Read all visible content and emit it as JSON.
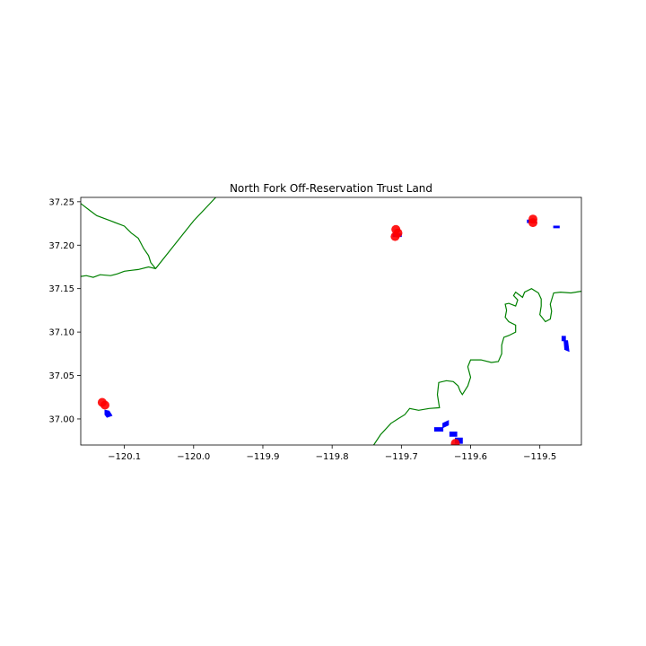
{
  "chart_data": {
    "type": "map",
    "title": "North Fork Off-Reservation Trust Land",
    "xlabel": "",
    "ylabel": "",
    "xlim": [
      -120.163,
      -119.44
    ],
    "ylim": [
      36.97,
      37.255
    ],
    "xticks": [
      -120.1,
      -120.0,
      -119.9,
      -119.8,
      -119.7,
      -119.6,
      -119.5
    ],
    "yticks": [
      37.0,
      37.05,
      37.1,
      37.15,
      37.2,
      37.25
    ],
    "xtick_labels": [
      "−120.1",
      "−120.0",
      "−119.9",
      "−119.8",
      "−119.7",
      "−119.6",
      "−119.5"
    ],
    "ytick_labels": [
      "37.00",
      "37.05",
      "37.10",
      "37.15",
      "37.20",
      "37.25"
    ],
    "grid": false,
    "colors": {
      "boundary": "#008000",
      "parcels": "#0000ff",
      "points": "#ff0000"
    },
    "boundary_lines": [
      [
        [
          -120.163,
          37.248
        ],
        [
          -120.15,
          37.24
        ],
        [
          -120.14,
          37.234
        ],
        [
          -120.12,
          37.228
        ],
        [
          -120.1,
          37.222
        ],
        [
          -120.09,
          37.214
        ],
        [
          -120.08,
          37.208
        ],
        [
          -120.072,
          37.196
        ],
        [
          -120.065,
          37.188
        ],
        [
          -120.062,
          37.18
        ],
        [
          -120.055,
          37.173
        ]
      ],
      [
        [
          -120.163,
          37.164
        ],
        [
          -120.155,
          37.165
        ],
        [
          -120.145,
          37.163
        ],
        [
          -120.135,
          37.166
        ],
        [
          -120.12,
          37.165
        ],
        [
          -120.11,
          37.167
        ],
        [
          -120.1,
          37.17
        ],
        [
          -120.09,
          37.171
        ],
        [
          -120.08,
          37.172
        ],
        [
          -120.065,
          37.175
        ],
        [
          -120.055,
          37.173
        ],
        [
          -120.03,
          37.198
        ],
        [
          -120.0,
          37.228
        ],
        [
          -119.968,
          37.255
        ]
      ],
      [
        [
          -119.74,
          36.97
        ],
        [
          -119.73,
          36.982
        ],
        [
          -119.715,
          36.995
        ],
        [
          -119.705,
          37.0
        ],
        [
          -119.695,
          37.005
        ],
        [
          -119.688,
          37.012
        ],
        [
          -119.675,
          37.01
        ],
        [
          -119.66,
          37.012
        ],
        [
          -119.645,
          37.013
        ],
        [
          -119.648,
          37.028
        ],
        [
          -119.646,
          37.042
        ],
        [
          -119.635,
          37.044
        ],
        [
          -119.625,
          37.043
        ],
        [
          -119.618,
          37.038
        ],
        [
          -119.615,
          37.032
        ],
        [
          -119.612,
          37.028
        ],
        [
          -119.604,
          37.038
        ],
        [
          -119.6,
          37.048
        ],
        [
          -119.604,
          37.06
        ],
        [
          -119.6,
          37.068
        ],
        [
          -119.585,
          37.068
        ],
        [
          -119.57,
          37.065
        ],
        [
          -119.56,
          37.066
        ],
        [
          -119.555,
          37.075
        ],
        [
          -119.555,
          37.085
        ],
        [
          -119.552,
          37.094
        ],
        [
          -119.545,
          37.096
        ],
        [
          -119.535,
          37.1
        ],
        [
          -119.535,
          37.108
        ],
        [
          -119.545,
          37.112
        ],
        [
          -119.55,
          37.117
        ],
        [
          -119.548,
          37.125
        ],
        [
          -119.55,
          37.132
        ],
        [
          -119.545,
          37.133
        ],
        [
          -119.535,
          37.13
        ],
        [
          -119.532,
          37.137
        ],
        [
          -119.538,
          37.142
        ],
        [
          -119.535,
          37.146
        ],
        [
          -119.525,
          37.14
        ],
        [
          -119.522,
          37.146
        ],
        [
          -119.512,
          37.15
        ],
        [
          -119.502,
          37.145
        ],
        [
          -119.498,
          37.138
        ],
        [
          -119.498,
          37.13
        ],
        [
          -119.5,
          37.12
        ],
        [
          -119.492,
          37.112
        ],
        [
          -119.485,
          37.115
        ],
        [
          -119.483,
          37.124
        ],
        [
          -119.485,
          37.132
        ],
        [
          -119.48,
          37.145
        ],
        [
          -119.47,
          37.146
        ],
        [
          -119.455,
          37.145
        ],
        [
          -119.44,
          37.147
        ]
      ]
    ],
    "parcel_polygons": [
      [
        [
          -120.128,
          37.01
        ],
        [
          -120.122,
          37.009
        ],
        [
          -120.118,
          37.004
        ],
        [
          -120.125,
          37.002
        ],
        [
          -120.128,
          37.005
        ]
      ],
      [
        [
          -119.712,
          37.213
        ],
        [
          -119.7,
          37.213
        ],
        [
          -119.7,
          37.21
        ],
        [
          -119.712,
          37.21
        ]
      ],
      [
        [
          -119.518,
          37.229
        ],
        [
          -119.505,
          37.229
        ],
        [
          -119.505,
          37.226
        ],
        [
          -119.518,
          37.226
        ]
      ],
      [
        [
          -119.48,
          37.222
        ],
        [
          -119.472,
          37.222
        ],
        [
          -119.472,
          37.22
        ],
        [
          -119.48,
          37.22
        ]
      ],
      [
        [
          -119.468,
          37.095
        ],
        [
          -119.463,
          37.095
        ],
        [
          -119.463,
          37.09
        ],
        [
          -119.468,
          37.09
        ]
      ],
      [
        [
          -119.465,
          37.09
        ],
        [
          -119.46,
          37.09
        ],
        [
          -119.458,
          37.078
        ],
        [
          -119.464,
          37.08
        ]
      ],
      [
        [
          -119.652,
          36.99
        ],
        [
          -119.64,
          36.99
        ],
        [
          -119.64,
          36.986
        ],
        [
          -119.652,
          36.986
        ]
      ],
      [
        [
          -119.64,
          36.995
        ],
        [
          -119.632,
          36.998
        ],
        [
          -119.632,
          36.993
        ],
        [
          -119.64,
          36.99
        ]
      ],
      [
        [
          -119.63,
          36.985
        ],
        [
          -119.62,
          36.985
        ],
        [
          -119.62,
          36.98
        ],
        [
          -119.63,
          36.98
        ]
      ],
      [
        [
          -119.622,
          36.978
        ],
        [
          -119.612,
          36.978
        ],
        [
          -119.612,
          36.972
        ],
        [
          -119.622,
          36.972
        ]
      ]
    ],
    "points": [
      [
        -120.132,
        37.019
      ],
      [
        -120.128,
        37.016
      ],
      [
        -119.708,
        37.218
      ],
      [
        -119.705,
        37.214
      ],
      [
        -119.709,
        37.21
      ],
      [
        -119.51,
        37.23
      ],
      [
        -119.51,
        37.226
      ],
      [
        -119.622,
        36.972
      ]
    ]
  }
}
